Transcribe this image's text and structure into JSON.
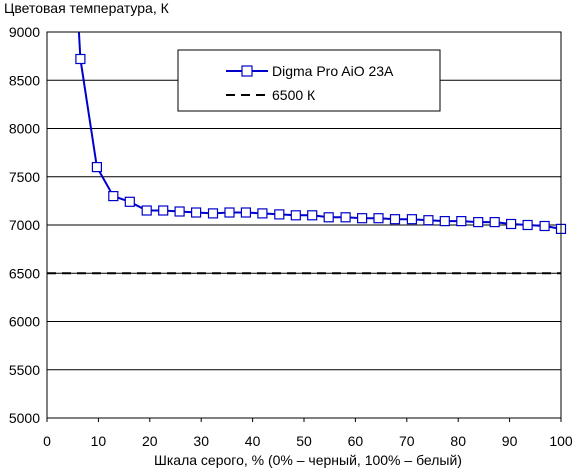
{
  "chart_data": {
    "type": "line",
    "title": "",
    "ylabel": "Цветовая температура, К",
    "xlabel": "Шкала серого, % (0% – черный, 100% – белый)",
    "xlim": [
      0,
      100
    ],
    "ylim": [
      5000,
      9000
    ],
    "x_ticks": [
      0,
      10,
      20,
      30,
      40,
      50,
      60,
      70,
      80,
      90,
      100
    ],
    "y_ticks": [
      5000,
      5500,
      6000,
      6500,
      7000,
      7500,
      8000,
      8500,
      9000
    ],
    "grid": "horizontal",
    "legend_position": "top-right",
    "series": [
      {
        "name": "Digma Pro AiO 23A",
        "color": "#0000cc",
        "marker": "square",
        "x": [
          6.5,
          9.7,
          12.9,
          16.1,
          19.4,
          22.6,
          25.8,
          29.0,
          32.3,
          35.5,
          38.7,
          41.9,
          45.2,
          48.4,
          51.6,
          54.8,
          58.1,
          61.3,
          64.5,
          67.7,
          71.0,
          74.2,
          77.4,
          80.6,
          83.9,
          87.1,
          90.3,
          93.5,
          96.8,
          100
        ],
        "y": [
          8720,
          7600,
          7300,
          7240,
          7150,
          7150,
          7140,
          7130,
          7120,
          7130,
          7130,
          7120,
          7110,
          7100,
          7100,
          7080,
          7080,
          7070,
          7070,
          7060,
          7060,
          7050,
          7040,
          7040,
          7030,
          7030,
          7010,
          7000,
          6990,
          6960
        ]
      },
      {
        "name": "6500 К",
        "color": "#000000",
        "dash": true,
        "value": 6500
      }
    ]
  }
}
